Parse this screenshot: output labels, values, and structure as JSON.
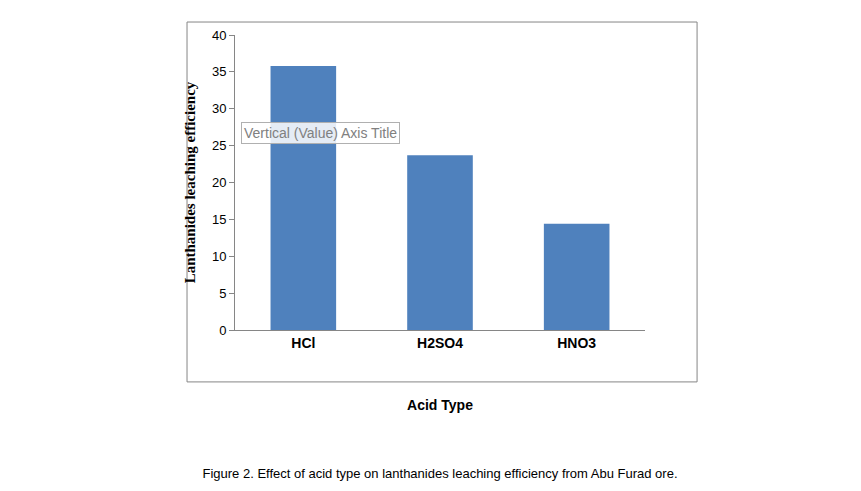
{
  "chart_data": {
    "type": "bar",
    "title": "Figure 2. Effect of acid type on lanthanides leaching efficiency from Abu Furad ore.",
    "x_label": "Acid Type",
    "y_label": "Lanthanides leaching efficiency",
    "annotations": [
      "Vertical (Value) Axis Title"
    ],
    "categories": [
      "HCl",
      "H2SO4",
      "HNO3"
    ],
    "values": [
      35.8,
      23.7,
      14.4
    ],
    "color": "#4f81bd",
    "ylim": [
      0,
      40
    ],
    "yticks": [
      0,
      5,
      10,
      15,
      20,
      25,
      30,
      35,
      40
    ],
    "grid": false
  }
}
